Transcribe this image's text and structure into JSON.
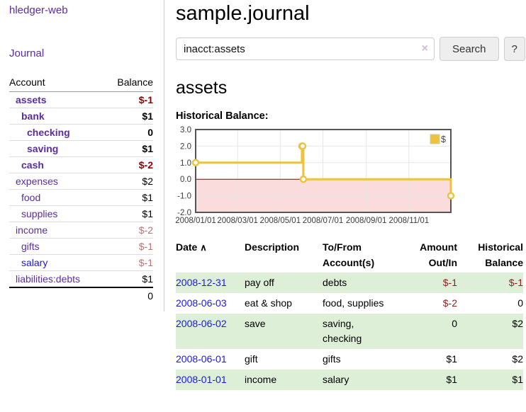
{
  "colors": {
    "link_purple": "#5a2d9e",
    "link_blue": "#1d18dd",
    "negative_strong": "#8b0000",
    "negative_soft": "#b97373",
    "register_negative": "#8b1f1f",
    "row_stripe_green": "#deefd8",
    "series_gold": "#EDC240",
    "below_zero_pink": "#fadcdc",
    "zero_line_red": "#8b0000",
    "plot_border_gray": "#545454",
    "gridline_gray": "#e6e6e6"
  },
  "sidebar": {
    "app_title": "hledger-web",
    "journal_label": "Journal",
    "accounts": {
      "header_account": "Account",
      "header_balance": "Balance",
      "rows": [
        {
          "name": "assets",
          "balance": "$-1",
          "depth": 0,
          "bold": true
        },
        {
          "name": "bank",
          "balance": "$1",
          "depth": 1,
          "bold": true
        },
        {
          "name": "checking",
          "balance": "0",
          "depth": 2,
          "bold": true
        },
        {
          "name": "saving",
          "balance": "$1",
          "depth": 2,
          "bold": true
        },
        {
          "name": "cash",
          "balance": "$-2",
          "depth": 1,
          "bold": true
        },
        {
          "name": "expenses",
          "balance": "$2",
          "depth": 0,
          "bold": false
        },
        {
          "name": "food",
          "balance": "$1",
          "depth": 1,
          "bold": false
        },
        {
          "name": "supplies",
          "balance": "$1",
          "depth": 1,
          "bold": false
        },
        {
          "name": "income",
          "balance": "$-2",
          "depth": 0,
          "bold": false
        },
        {
          "name": "gifts",
          "balance": "$-1",
          "depth": 1,
          "bold": false
        },
        {
          "name": "salary",
          "balance": "$-1",
          "depth": 1,
          "bold": false,
          "blue": true
        },
        {
          "name": "liabilities:debts",
          "balance": "$1",
          "depth": 0,
          "bold": false
        }
      ],
      "total": "0"
    }
  },
  "header": {
    "title": "sample.journal"
  },
  "search": {
    "value": "inacct:assets",
    "clear_icon": "×",
    "search_label": "Search",
    "help_label": "?"
  },
  "account": {
    "title": "assets",
    "chart_label": "Historical Balance:"
  },
  "chart_data": {
    "type": "line",
    "step": true,
    "title": "Historical Balance",
    "legend": [
      {
        "label": "$",
        "color": "#EDC240"
      }
    ],
    "legend_position": "top-right",
    "grid": true,
    "below_zero_shaded": true,
    "ylim": [
      -2,
      3
    ],
    "y_ticks": [
      3.0,
      2.0,
      1.0,
      0.0,
      -1.0,
      -2.0
    ],
    "y_tick_labels": [
      "3.0",
      "2.0",
      "1.0",
      "0.0",
      "-1.0",
      "-2.0"
    ],
    "x_range_days": [
      0,
      365
    ],
    "x_ticks": [
      {
        "day": 0,
        "label": "2008/01/01"
      },
      {
        "day": 60,
        "label": "2008/03/01"
      },
      {
        "day": 121,
        "label": "2008/05/01"
      },
      {
        "day": 182,
        "label": "2008/07/01"
      },
      {
        "day": 244,
        "label": "2008/09/01"
      },
      {
        "day": 305,
        "label": "2008/11/01"
      }
    ],
    "points": [
      {
        "date": "2008/01/01",
        "day": 0,
        "value": 1
      },
      {
        "date": "2008/06/01",
        "day": 152,
        "value": 2
      },
      {
        "date": "2008/06/02",
        "day": 153,
        "value": 2
      },
      {
        "date": "2008/06/03",
        "day": 154,
        "value": 0
      },
      {
        "date": "2008/12/31",
        "day": 365,
        "value": -1
      }
    ]
  },
  "register": {
    "headers": {
      "date": "Date",
      "sort_icon": "∧",
      "description": "Description",
      "accounts": "To/From Account(s)",
      "amount": "Amount Out/In",
      "balance": "Historical Balance"
    },
    "rows": [
      {
        "date": "2008-12-31",
        "description": "pay off",
        "accounts": "debts",
        "amount": "$-1",
        "balance": "$-1"
      },
      {
        "date": "2008-06-03",
        "description": "eat & shop",
        "accounts": "food, supplies",
        "amount": "$-2",
        "balance": "0"
      },
      {
        "date": "2008-06-02",
        "description": "save",
        "accounts": "saving, checking",
        "amount": "0",
        "balance": "$2"
      },
      {
        "date": "2008-06-01",
        "description": "gift",
        "accounts": "gifts",
        "amount": "$1",
        "balance": "$2"
      },
      {
        "date": "2008-01-01",
        "description": "income",
        "accounts": "salary",
        "amount": "$1",
        "balance": "$1"
      }
    ]
  }
}
